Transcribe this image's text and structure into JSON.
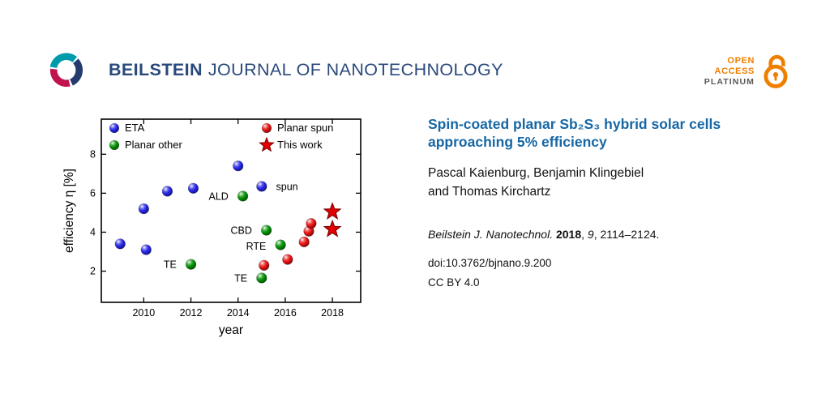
{
  "header": {
    "brand_bold": "BEILSTEIN",
    "brand_rest": "JOURNAL OF NANOTECHNOLOGY",
    "open_access": {
      "line1": "OPEN",
      "line2": "ACCESS",
      "line3": "PLATINUM"
    }
  },
  "article": {
    "title": "Spin-coated planar Sb₂S₃ hybrid solar cells approaching 5% efficiency",
    "authors": [
      "Pascal Kaienburg, Benjamin Klingebiel",
      "and Thomas Kirchartz"
    ],
    "citation_segments": [
      {
        "text": "Beilstein J. Nanotechnol. ",
        "style": "italic"
      },
      {
        "text": "2018",
        "style": "bold"
      },
      {
        "text": ", ",
        "style": "normal"
      },
      {
        "text": "9",
        "style": "italic"
      },
      {
        "text": ", 2114–2124.",
        "style": "normal"
      }
    ],
    "doi": "doi:10.3762/bjnano.9.200",
    "license": "CC BY 4.0"
  },
  "colors": {
    "brand_blue": "#2a4a7c",
    "title_blue": "#1667a5",
    "accent_orange": "#ef7f00",
    "platinum_gray": "#575756",
    "series_blue": "#2525e8",
    "series_green": "#009100",
    "series_red": "#e81010"
  },
  "chart_data": {
    "type": "scatter",
    "title": "",
    "xlabel": "year",
    "ylabel": "efficiency η [%]",
    "xlim": [
      2008.2,
      2019.2
    ],
    "ylim": [
      0.4,
      9.8
    ],
    "xticks": [
      2010,
      2012,
      2014,
      2016,
      2018
    ],
    "yticks": [
      2,
      4,
      6,
      8
    ],
    "grid": false,
    "legend_position": "inside-top",
    "series": [
      {
        "name": "ETA",
        "marker": "circle",
        "color": "#2525e8",
        "points": [
          [
            2009,
            3.4
          ],
          [
            2010,
            5.2
          ],
          [
            2010.1,
            3.1
          ],
          [
            2011,
            6.1
          ],
          [
            2012.1,
            6.25
          ],
          [
            2014,
            7.4
          ],
          [
            2015,
            6.35
          ]
        ]
      },
      {
        "name": "Planar other",
        "marker": "circle",
        "color": "#009100",
        "points": [
          [
            2012,
            2.35
          ],
          [
            2014.2,
            5.85
          ],
          [
            2015.2,
            4.1
          ],
          [
            2015.8,
            3.35
          ],
          [
            2015,
            1.65
          ]
        ]
      },
      {
        "name": "Planar spun",
        "marker": "circle",
        "color": "#e81010",
        "points": [
          [
            2015.1,
            2.3
          ],
          [
            2016.1,
            2.6
          ],
          [
            2016.8,
            3.5
          ],
          [
            2017,
            4.05
          ],
          [
            2017.1,
            4.45
          ]
        ]
      },
      {
        "name": "This work",
        "marker": "star",
        "color": "#e00000",
        "points": [
          [
            2018,
            5.05
          ],
          [
            2018,
            4.15
          ]
        ]
      }
    ],
    "annotations": [
      {
        "text": "spun",
        "x": 2015.3,
        "y": 6.35,
        "color": "#2525e8",
        "anchor": "start"
      },
      {
        "text": "ALD",
        "x": 2013.9,
        "y": 5.85,
        "color": "#009100",
        "anchor": "end"
      },
      {
        "text": "CBD",
        "x": 2014.9,
        "y": 4.1,
        "color": "#009100",
        "anchor": "end"
      },
      {
        "text": "RTE",
        "x": 2015.5,
        "y": 3.3,
        "color": "#009100",
        "anchor": "end"
      },
      {
        "text": "TE",
        "x": 2011.7,
        "y": 2.35,
        "color": "#009100",
        "anchor": "end"
      },
      {
        "text": "TE",
        "x": 2014.7,
        "y": 1.65,
        "color": "#009100",
        "anchor": "end"
      }
    ],
    "legend": [
      {
        "label": "ETA",
        "color": "#2525e8",
        "marker": "circle",
        "group": 1
      },
      {
        "label": "Planar other",
        "color": "#009100",
        "marker": "circle",
        "group": 1
      },
      {
        "label": "Planar spun",
        "color": "#e81010",
        "marker": "circle",
        "group": 2
      },
      {
        "label": "This work",
        "color": "#e00000",
        "marker": "star",
        "group": 2
      }
    ]
  }
}
